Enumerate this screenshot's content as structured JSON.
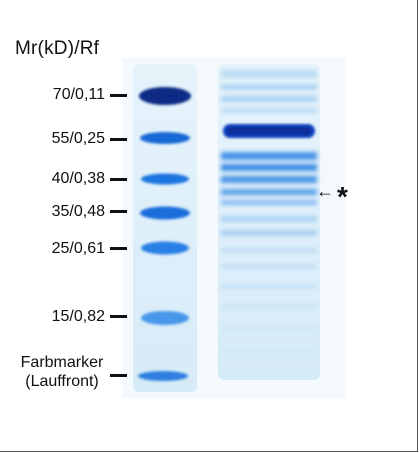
{
  "header": {
    "title": "Mr(kD)/Rf"
  },
  "markers": [
    {
      "label": "70/0,11"
    },
    {
      "label": "55/0,25"
    },
    {
      "label": "40/0,38"
    },
    {
      "label": "35/0,48"
    },
    {
      "label": "25/0,61"
    },
    {
      "label": "15/0,82"
    }
  ],
  "front_marker": {
    "line1": "Farbmarker",
    "line2": "(Lauffront)"
  },
  "annotation": {
    "arrow": "←",
    "star": "*"
  },
  "colors": {
    "gel_bg": "#dceef9",
    "band_dark": "#0a2f8f",
    "band_mid": "#1565d8",
    "band_light": "#5aa6ee"
  }
}
